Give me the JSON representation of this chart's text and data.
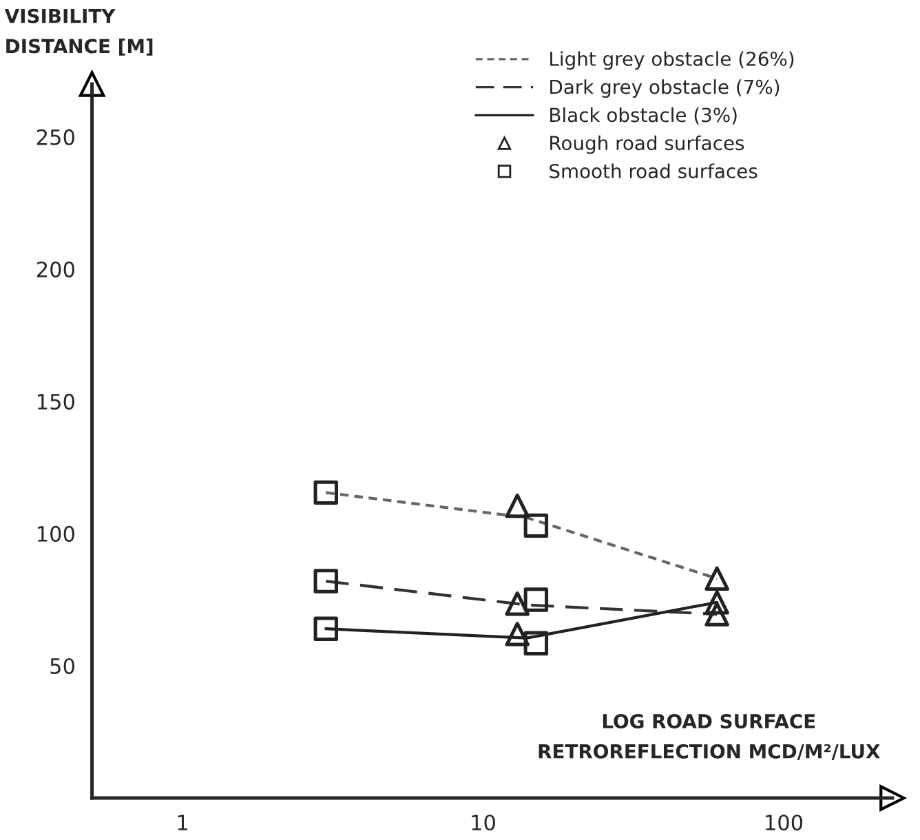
{
  "chart_data": {
    "type": "line",
    "xlabel": "LOG ROAD SURFACE\nRETROREFLECTION MCD/M²/LUX",
    "ylabel": "VISIBILITY\nDISTANCE [M]",
    "log": "x",
    "xlim": [
      0.5,
      230
    ],
    "xticks": [
      1,
      10,
      100
    ],
    "ylim": [
      0,
      270
    ],
    "yticks": [
      50,
      100,
      150,
      200,
      250
    ],
    "grid": false,
    "legend": "top right",
    "series": [
      {
        "name": "Light grey obstacle (26%)",
        "color": "#666666",
        "line_style": "dotted",
        "marker": "none",
        "x": [
          3,
          14,
          60
        ],
        "values": [
          115.5,
          106,
          83
        ]
      },
      {
        "name": "Dark grey obstacle (7%)",
        "color": "#333333",
        "line_style": "dashed",
        "marker": "none",
        "x": [
          3,
          14,
          60
        ],
        "values": [
          82,
          73,
          69.5
        ]
      },
      {
        "name": "Black obstacle (3%)",
        "color": "#222222",
        "line_style": "solid",
        "marker": "none",
        "x": [
          3,
          14,
          60
        ],
        "values": [
          64,
          60.5,
          74
        ]
      },
      {
        "name": "Rough road surfaces",
        "type": "scatter",
        "color": "#222222",
        "marker": "triangle",
        "x": [
          13,
          13,
          13,
          60,
          60,
          60
        ],
        "values": [
          110.5,
          73.5,
          62,
          83,
          74,
          69.5
        ]
      },
      {
        "name": "Smooth road surfaces",
        "type": "scatter",
        "color": "#222222",
        "marker": "square",
        "x": [
          3,
          3,
          3,
          15,
          15,
          15
        ],
        "values": [
          115.5,
          82,
          64,
          103,
          75,
          58.5
        ]
      }
    ]
  }
}
